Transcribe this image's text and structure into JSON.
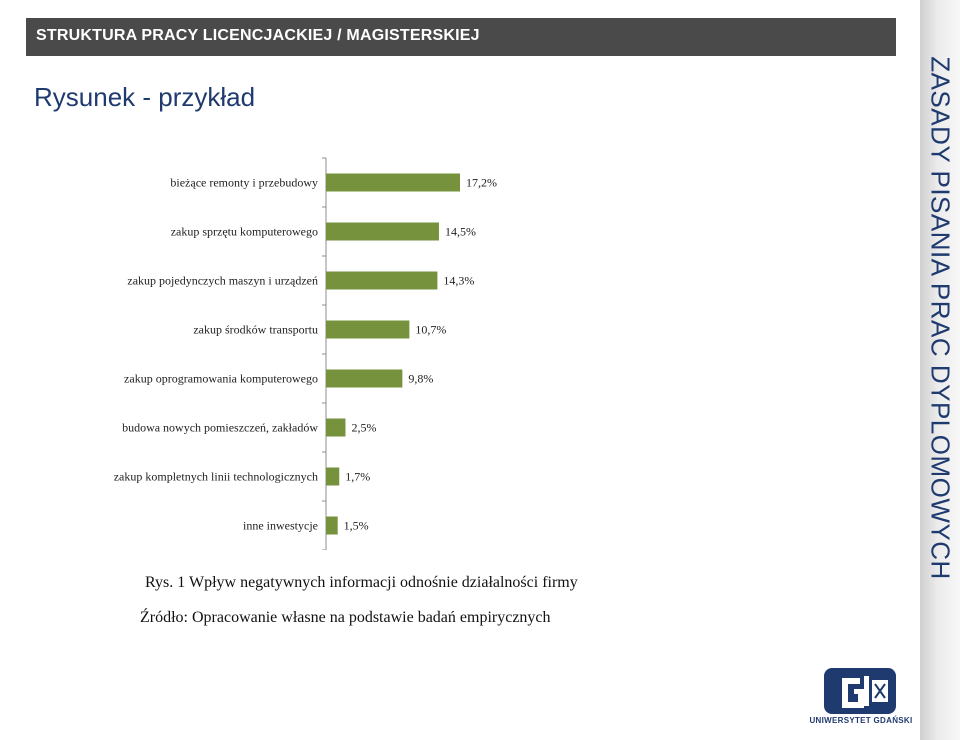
{
  "header": {
    "title": "STRUKTURA PRACY  LICENCJACKIEJ / MAGISTERSKIEJ"
  },
  "slide": {
    "title": "Rysunek  - przykład"
  },
  "side_panel": {
    "text": "ZASADY PISANIA PRAC DYPLOMOWYCH"
  },
  "caption": "Rys. 1 Wpływ negatywnych informacji odnośnie działalności firmy",
  "source": "Źródło: Opracowanie własne na podstawie badań empirycznych",
  "logo": {
    "text": "UNIWERSYTET GDAŃSKI"
  },
  "colors": {
    "bar": "#76923c",
    "header": "#4a4a4a",
    "title": "#1f3a6e"
  },
  "chart_data": {
    "type": "bar",
    "orientation": "horizontal",
    "categories": [
      "bieżące remonty i przebudowy",
      "zakup sprzętu komputerowego",
      "zakup pojedynczych maszyn i urządzeń",
      "zakup środków transportu",
      "zakup oprogramowania komputerowego",
      "budowa nowych pomieszczeń, zakładów",
      "zakup kompletnych linii technologicznych",
      "inne inwestycje"
    ],
    "values": [
      17.2,
      14.5,
      14.3,
      10.7,
      9.8,
      2.5,
      1.7,
      1.5
    ],
    "data_labels": [
      "17,2%",
      "14,5%",
      "14,3%",
      "10,7%",
      "9,8%",
      "2,5%",
      "1,7%",
      "1,5%"
    ],
    "title": "",
    "xlabel": "",
    "ylabel": "",
    "xlim": [
      0,
      17.2
    ],
    "grid": false
  }
}
